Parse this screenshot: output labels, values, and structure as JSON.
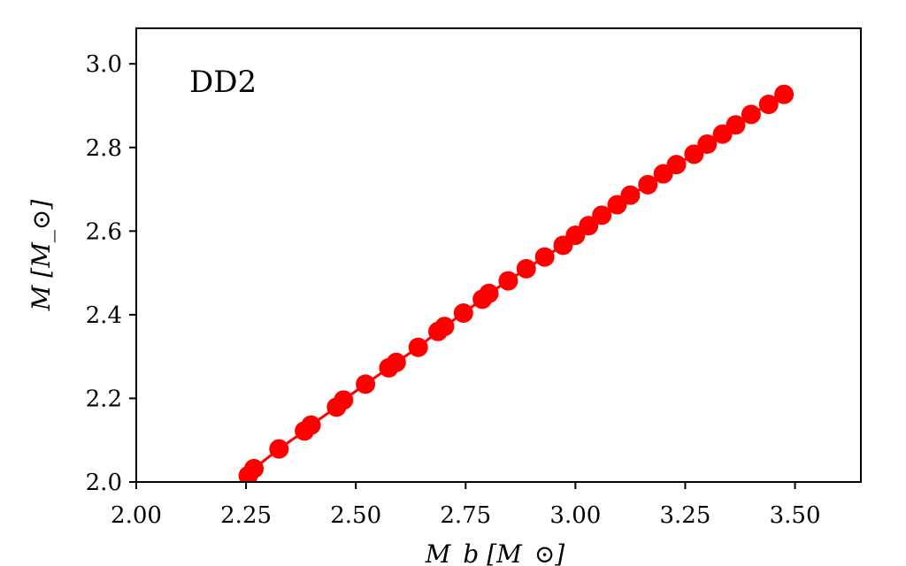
{
  "chart_data": {
    "type": "line",
    "annotation": "DD2",
    "xlabel": "M_b [M_⊙]",
    "ylabel": "M [M_⊙]",
    "xlim": [
      2.0,
      3.65
    ],
    "ylim": [
      2.0,
      3.085
    ],
    "x_ticks": [
      "2.00",
      "2.25",
      "2.50",
      "2.75",
      "3.00",
      "3.25",
      "3.50"
    ],
    "y_ticks": [
      "2.0",
      "2.2",
      "2.4",
      "2.6",
      "2.8",
      "3.0"
    ],
    "grid": false,
    "color": "#ff0000",
    "series": [
      {
        "x": [
          2.255,
          2.268,
          2.325,
          2.383,
          2.398,
          2.456,
          2.472,
          2.522,
          2.575,
          2.592,
          2.642,
          2.687,
          2.702,
          2.745,
          2.788,
          2.803,
          2.847,
          2.888,
          2.93,
          2.972,
          3.0,
          3.03,
          3.06,
          3.095,
          3.125,
          3.165,
          3.2,
          3.23,
          3.27,
          3.3,
          3.335,
          3.365,
          3.4,
          3.44,
          3.475
        ],
        "y": [
          2.015,
          2.032,
          2.079,
          2.122,
          2.136,
          2.179,
          2.196,
          2.234,
          2.273,
          2.286,
          2.322,
          2.36,
          2.372,
          2.404,
          2.437,
          2.451,
          2.481,
          2.51,
          2.538,
          2.566,
          2.59,
          2.613,
          2.638,
          2.663,
          2.686,
          2.711,
          2.737,
          2.759,
          2.784,
          2.808,
          2.832,
          2.854,
          2.879,
          2.903,
          2.927
        ]
      }
    ]
  }
}
